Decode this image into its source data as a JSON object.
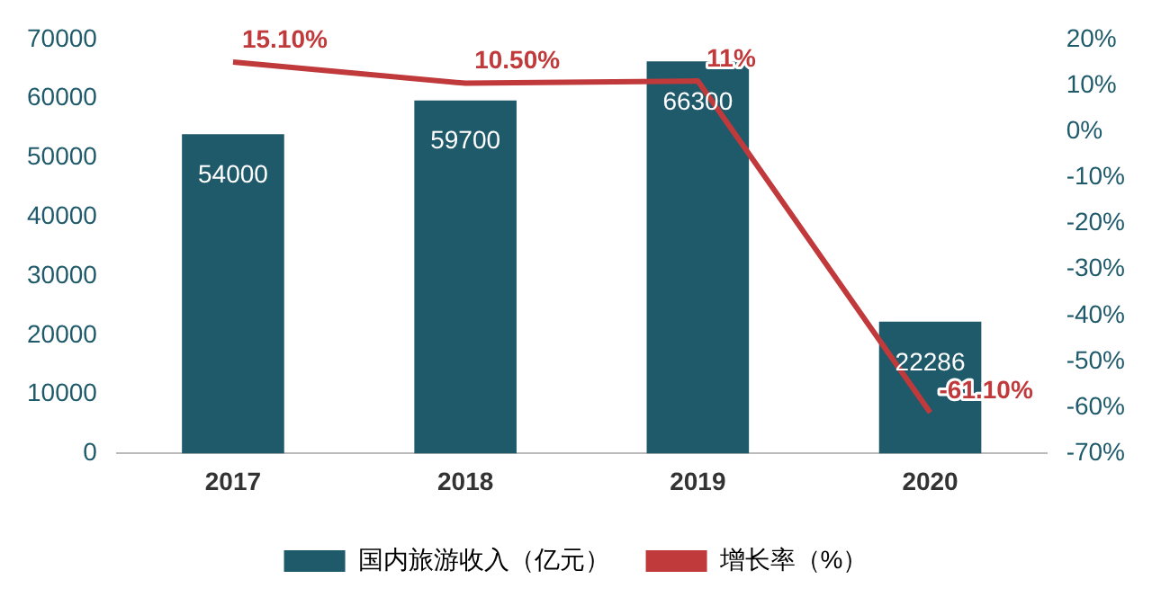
{
  "chart_data": {
    "type": "bar",
    "categories": [
      "2017",
      "2018",
      "2019",
      "2020"
    ],
    "series": [
      {
        "name": "国内旅游收入（亿元）",
        "color": "#1f5a6b",
        "values": [
          54000,
          59700,
          66300,
          22286
        ],
        "value_labels": [
          "54000",
          "59700",
          "66300",
          "22286"
        ]
      },
      {
        "name": "增长率（%）",
        "type": "line",
        "axis": "y2",
        "color": "#c0393b",
        "values": [
          15.1,
          10.5,
          11,
          -61.1
        ],
        "value_labels": [
          "15.10%",
          "10.50%",
          "11%",
          "-61.10%"
        ]
      }
    ],
    "ylim": [
      0,
      70000
    ],
    "yticks": [
      0,
      10000,
      20000,
      30000,
      40000,
      50000,
      60000,
      70000
    ],
    "y2lim": [
      -70,
      20
    ],
    "y2ticks": [
      {
        "value": -70,
        "label": "-70%"
      },
      {
        "value": -60,
        "label": "-60%"
      },
      {
        "value": -50,
        "label": "-50%"
      },
      {
        "value": -40,
        "label": "-40%"
      },
      {
        "value": -30,
        "label": "-30%"
      },
      {
        "value": -20,
        "label": "-20%"
      },
      {
        "value": -10,
        "label": "-10%"
      },
      {
        "value": 0,
        "label": "0%"
      },
      {
        "value": 10,
        "label": "10%"
      },
      {
        "value": 20,
        "label": "20%"
      }
    ],
    "legend": "bottom",
    "grid": false,
    "marker": "none"
  }
}
